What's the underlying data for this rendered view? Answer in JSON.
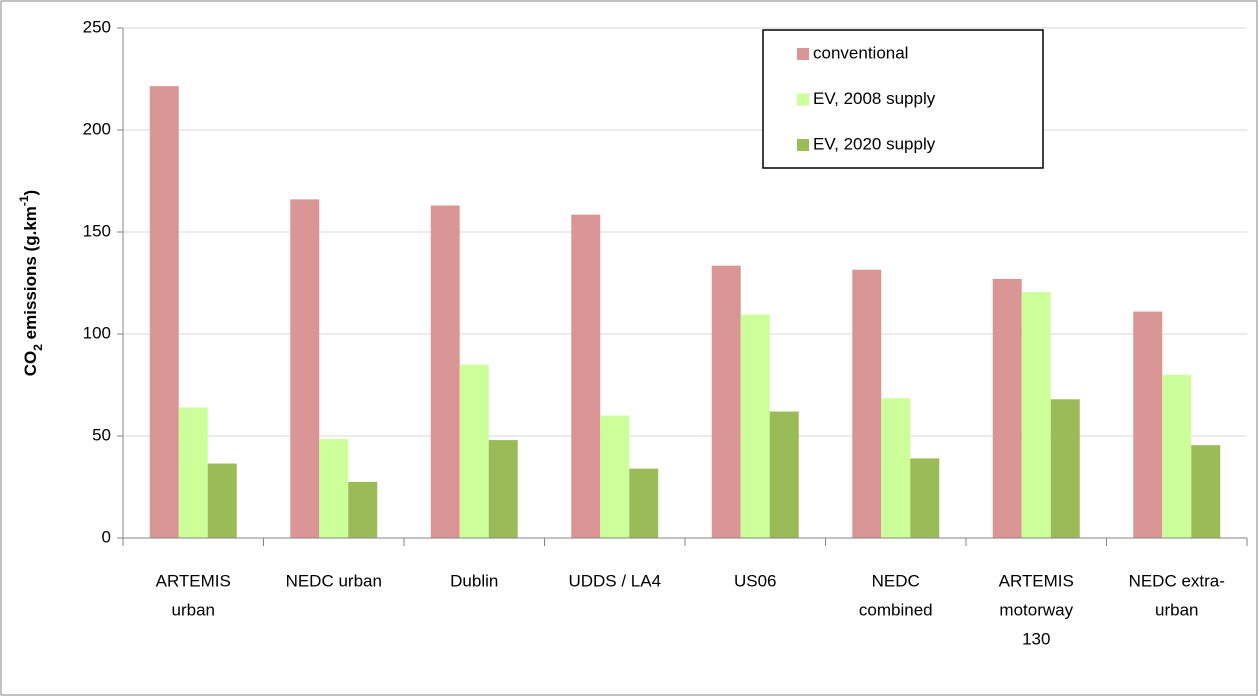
{
  "chart_data": {
    "type": "bar",
    "y_label": [
      "CO",
      "2",
      " emissions (g.km",
      "-1",
      ")"
    ],
    "categories": [
      [
        "ARTEMIS",
        "urban"
      ],
      [
        "NEDC urban"
      ],
      [
        "Dublin"
      ],
      [
        "UDDS / LA4"
      ],
      [
        "US06"
      ],
      [
        "NEDC",
        "combined"
      ],
      [
        "ARTEMIS",
        "motorway",
        "130"
      ],
      [
        "NEDC extra-",
        "urban"
      ]
    ],
    "series": [
      {
        "name": "conventional",
        "color": "#d99694",
        "values": [
          221.5,
          166,
          163,
          158.5,
          133.5,
          131.5,
          127,
          111
        ]
      },
      {
        "name": "EV, 2008 supply",
        "color": "#ccff99",
        "values": [
          64,
          48.5,
          85,
          60,
          109.5,
          68.5,
          120.5,
          80
        ]
      },
      {
        "name": "EV, 2020 supply",
        "color": "#9bbb59",
        "values": [
          36.5,
          27.5,
          48,
          34,
          62,
          39,
          68,
          45.5
        ]
      }
    ],
    "ylim": [
      0,
      250
    ],
    "yticks": [
      0,
      50,
      100,
      150,
      200,
      250
    ],
    "grid": true,
    "legend": "top-right"
  }
}
